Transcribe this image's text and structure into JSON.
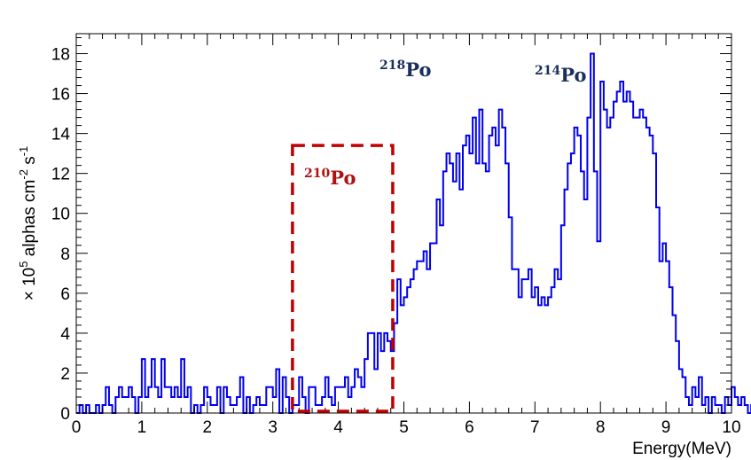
{
  "chart_data": {
    "type": "histogram",
    "title": "",
    "xlabel": "Energy(MeV)",
    "ylabel": {
      "prefix": "× 10",
      "exp": "5",
      "unit": " alphas cm",
      "unit_exp1": "-2",
      "unit2": " s",
      "unit_exp2": "-1"
    },
    "xlim": [
      0,
      10
    ],
    "ylim": [
      0,
      19
    ],
    "x_ticks": [
      0,
      1,
      2,
      3,
      4,
      5,
      6,
      7,
      8,
      9,
      10
    ],
    "y_ticks": [
      0,
      2,
      4,
      6,
      8,
      10,
      12,
      14,
      16,
      18
    ],
    "grid": false,
    "bin_width": 0.05,
    "series": [
      {
        "color": "#0000ee",
        "x_start": 0,
        "values": [
          0,
          0.4,
          0,
          0.4,
          0,
          0,
          0.4,
          0,
          0.4,
          1.3,
          0.4,
          0,
          0.8,
          1.3,
          0.8,
          0.8,
          1.3,
          0.8,
          0,
          0.8,
          2.7,
          0.8,
          1.3,
          2.7,
          1.3,
          0.8,
          2.7,
          1.3,
          1.3,
          0.8,
          1.3,
          0.8,
          2.7,
          0.8,
          1.3,
          0,
          0.4,
          0,
          0.4,
          1.3,
          0.8,
          0.4,
          0.4,
          1.3,
          0,
          1.3,
          0.8,
          0.4,
          0.4,
          0.8,
          1.8,
          0,
          0.8,
          0,
          0.4,
          0.8,
          0.4,
          0.4,
          1.3,
          1.3,
          0.8,
          2.2,
          0,
          1.8,
          0.8,
          0,
          0.4,
          0.4,
          1.8,
          0.8,
          0,
          1.3,
          1.3,
          0.4,
          0.4,
          0.8,
          1.8,
          0.8,
          0.4,
          1.3,
          1.3,
          1.3,
          1.8,
          0.8,
          1.3,
          2.2,
          1.8,
          1.3,
          2.7,
          4.0,
          4.0,
          2.2,
          4.0,
          3.1,
          4.0,
          3.6,
          3.1,
          4.5,
          6.7,
          5.4,
          5.8,
          6.3,
          6.7,
          7.2,
          7.6,
          7.6,
          8.1,
          7.2,
          8.5,
          8.5,
          10.7,
          9.4,
          12.1,
          13.0,
          12.5,
          11.6,
          13.0,
          11.2,
          13.4,
          13.9,
          13.0,
          14.8,
          12.5,
          15.2,
          12.5,
          12.1,
          13.9,
          14.3,
          13.4,
          15.2,
          14.3,
          12.5,
          9.8,
          7.2,
          7.2,
          5.8,
          6.7,
          6.7,
          7.2,
          5.8,
          6.3,
          5.4,
          5.8,
          5.4,
          5.8,
          6.3,
          7.2,
          6.7,
          9.4,
          11.2,
          12.5,
          13.0,
          14.3,
          13.9,
          12.1,
          10.7,
          14.8,
          18.0,
          12.1,
          8.6,
          16.6,
          15.2,
          14.3,
          14.8,
          15.6,
          16.1,
          16.6,
          15.6,
          16.1,
          15.6,
          14.8,
          14.8,
          15.2,
          14.8,
          14.3,
          13.9,
          13.0,
          10.3,
          7.6,
          8.5,
          7.6,
          6.3,
          4.9,
          3.6,
          2.2,
          1.8,
          0.8,
          0.4,
          1.3,
          0.8,
          1.8,
          0.4,
          0.8,
          0,
          0.8,
          0.4,
          0.4,
          0,
          0.8,
          0.4,
          1.3,
          0.8,
          0.4,
          0.8,
          0.4,
          0,
          0.4,
          0.4,
          0,
          0.4,
          0,
          0.8,
          0,
          0,
          0.4,
          0,
          0.4,
          0,
          0,
          0,
          0,
          0,
          0,
          0,
          0,
          0,
          0,
          0,
          0,
          0,
          0,
          0,
          0,
          0,
          0,
          0,
          0,
          0,
          0,
          0
        ]
      }
    ],
    "annotations": [
      {
        "label": "210",
        "suffix": "Po",
        "color": "#b01010"
      },
      {
        "label": "218",
        "suffix": "Po",
        "color": "#1b2f5a"
      },
      {
        "label": "214",
        "suffix": "Po",
        "color": "#1b2f5a"
      }
    ],
    "highlight_region": {
      "x_range": [
        3.3,
        4.83
      ],
      "y_range": [
        0,
        13.4
      ],
      "color": "#c00000",
      "style": "dashed"
    }
  }
}
